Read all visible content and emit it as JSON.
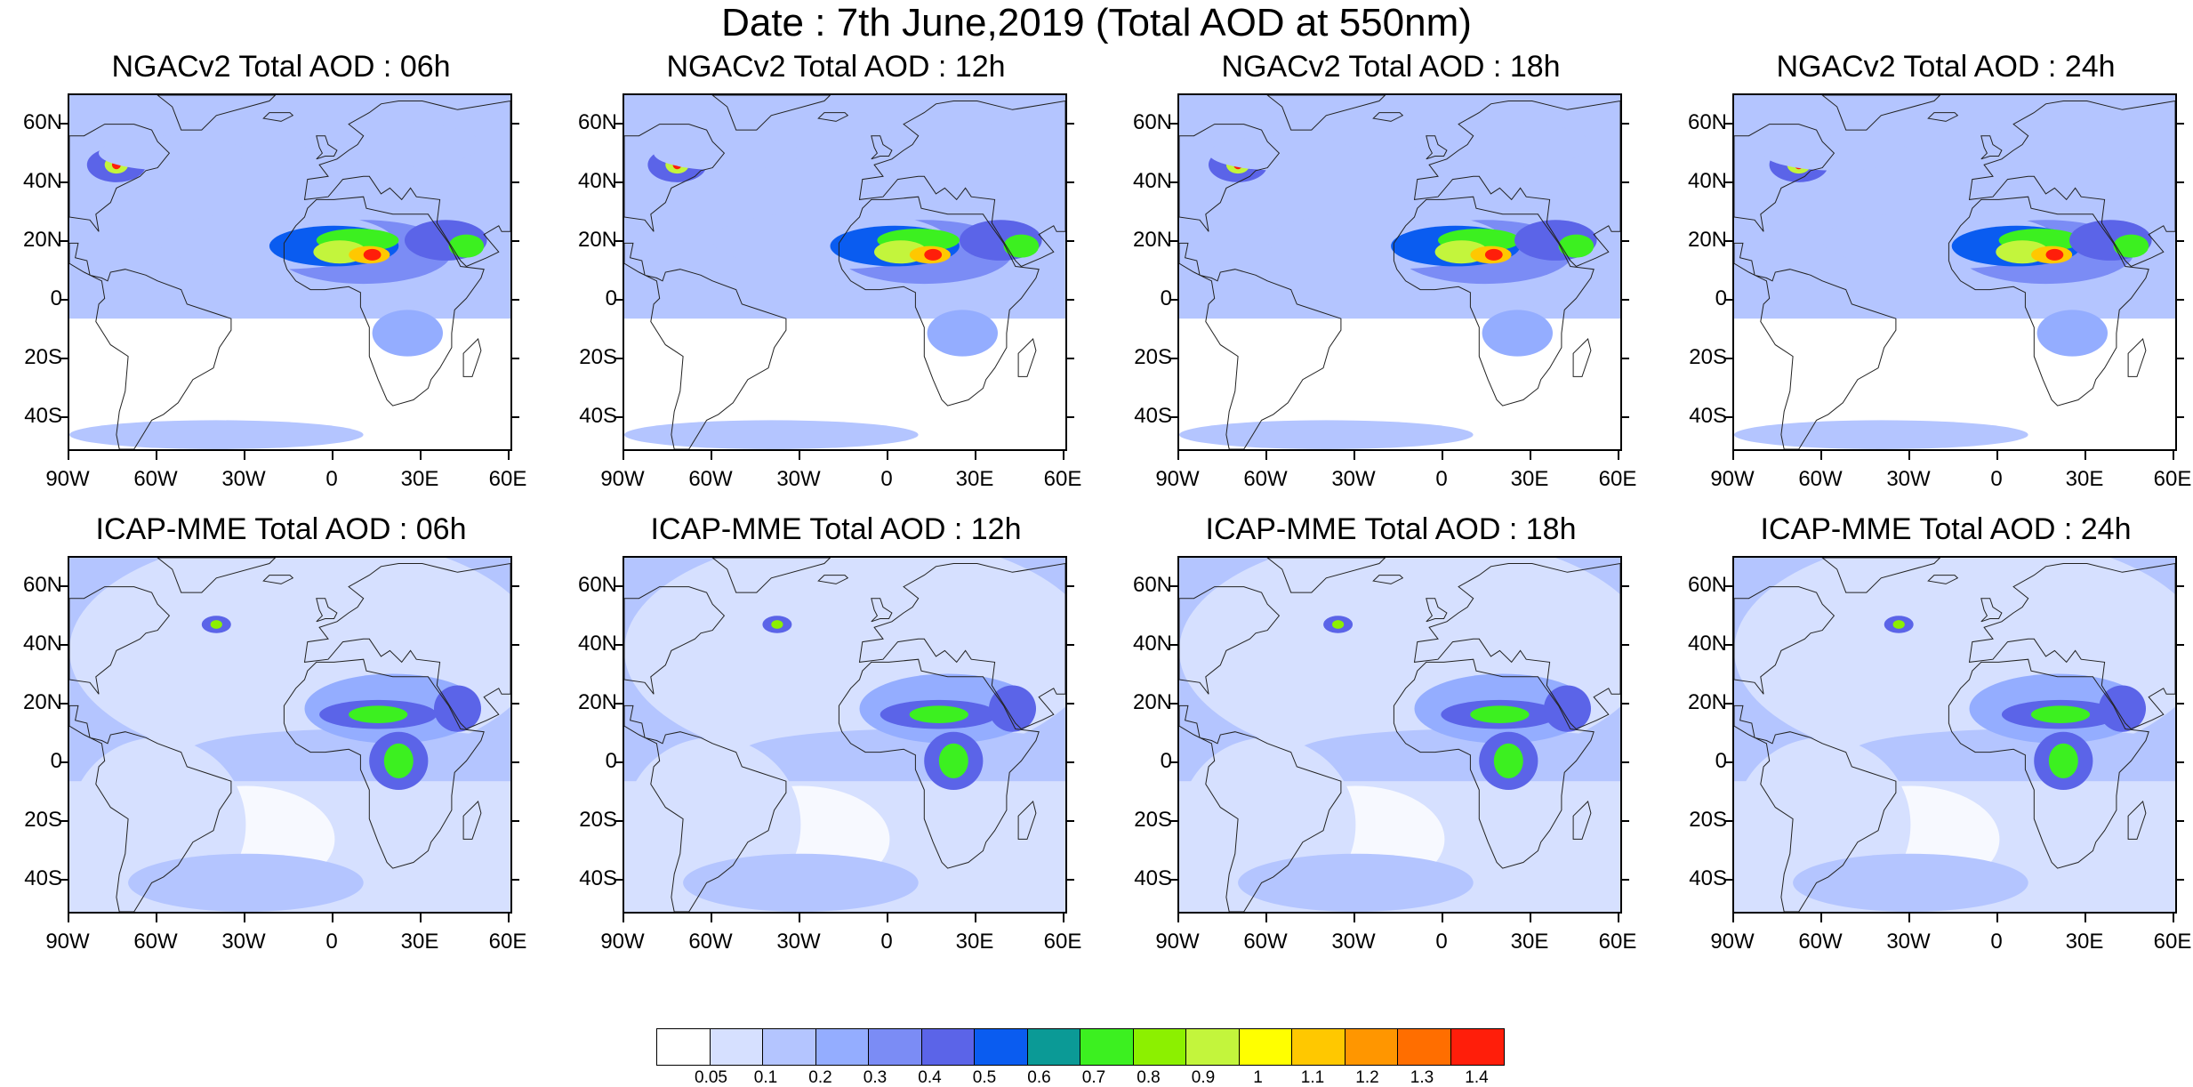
{
  "title": "Date : 7th June,2019 (Total AOD at 550nm)",
  "panels": [
    {
      "title": "NGACv2 Total AOD : 06h",
      "model": "NGACv2",
      "hour": "06h"
    },
    {
      "title": "NGACv2 Total AOD : 12h",
      "model": "NGACv2",
      "hour": "12h"
    },
    {
      "title": "NGACv2 Total AOD : 18h",
      "model": "NGACv2",
      "hour": "18h"
    },
    {
      "title": "NGACv2 Total AOD : 24h",
      "model": "NGACv2",
      "hour": "24h"
    },
    {
      "title": "ICAP-MME Total AOD : 06h",
      "model": "ICAP-MME",
      "hour": "06h"
    },
    {
      "title": "ICAP-MME Total AOD : 12h",
      "model": "ICAP-MME",
      "hour": "12h"
    },
    {
      "title": "ICAP-MME Total AOD : 18h",
      "model": "ICAP-MME",
      "hour": "18h"
    },
    {
      "title": "ICAP-MME Total AOD : 24h",
      "model": "ICAP-MME",
      "hour": "24h"
    }
  ],
  "lat_labels": [
    "60N",
    "40N",
    "20N",
    "0",
    "20S",
    "40S"
  ],
  "lon_labels": [
    "90W",
    "60W",
    "30W",
    "0",
    "30E",
    "60E"
  ],
  "colorbar": {
    "labels": [
      "0.05",
      "0.1",
      "0.2",
      "0.3",
      "0.4",
      "0.5",
      "0.6",
      "0.7",
      "0.8",
      "0.9",
      "1",
      "1.1",
      "1.2",
      "1.3",
      "1.4"
    ],
    "colors": [
      "#ffffff",
      "#d6e0ff",
      "#b4c5ff",
      "#94adff",
      "#7b8cf5",
      "#5b64e8",
      "#0a5cf0",
      "#0b9a96",
      "#3cf020",
      "#8cf000",
      "#c3f53c",
      "#ffff00",
      "#ffc800",
      "#ff9600",
      "#ff6e00",
      "#ff1e0a"
    ]
  }
}
